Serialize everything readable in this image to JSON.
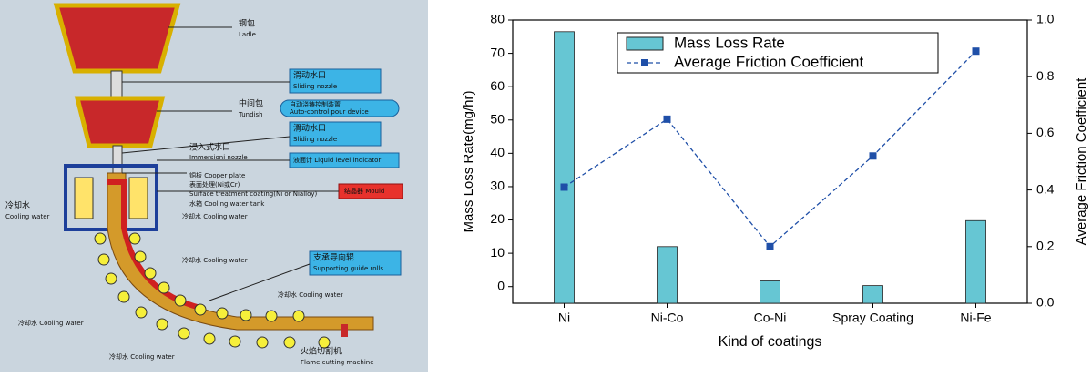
{
  "diagram": {
    "labels": [
      "钢包",
      "Ladle",
      "滑动水口",
      "Sliding nozzle",
      "中间包",
      "Tundish",
      "自动浇铸控制装置",
      "Auto-control pour device",
      "滑动水口",
      "Sliding nozzle",
      "浸入式水口",
      "Immersioni nozzle",
      "液面计 Liquid level indicator",
      "铜板 Cooper plate",
      "表面处理(Ni或Cr)",
      "Surface treatment coating(Ni or Nialloy)",
      "水箱 Cooling water tank",
      "结晶器 Mould",
      "冷却水",
      "Cooling water",
      "冷却水 Cooling water",
      "冷却水 Cooling water",
      "支承导向辊",
      "Supporting guide rolls",
      "冷却水 Cooling water",
      "冷却水 Cooling water",
      "冷却水 Cooling water",
      "火焰切割机",
      "Flame cutting machine"
    ]
  },
  "chart_data": {
    "type": "combo",
    "xlabel": "Kind of coatings",
    "ylabel": "Mass Loss Rate(mg/hr)",
    "y2label": "Average Friction Coefficient",
    "categories": [
      "Ni",
      "Ni-Co",
      "Co-Ni",
      "Spray Coating",
      "Ni-Fe"
    ],
    "series": [
      {
        "name": "Mass Loss Rate",
        "type": "bar",
        "color": "#66c6d3",
        "values": [
          76.5,
          12,
          1.7,
          0.3,
          19.8
        ]
      },
      {
        "name": "Average Friction Coefficient",
        "type": "line",
        "axis": "y2",
        "color": "#1f4fa8",
        "values": [
          0.41,
          0.65,
          0.2,
          0.52,
          0.89
        ]
      }
    ],
    "ylim": [
      -5,
      80
    ],
    "yticks": [
      0,
      10,
      20,
      30,
      40,
      50,
      60,
      70,
      80
    ],
    "y2lim": [
      0,
      1
    ],
    "y2ticks": [
      {
        "value": 0,
        "label": "0.0"
      },
      0.2,
      0.4,
      0.6,
      0.8,
      {
        "value": 1,
        "label": "1.0"
      }
    ]
  }
}
